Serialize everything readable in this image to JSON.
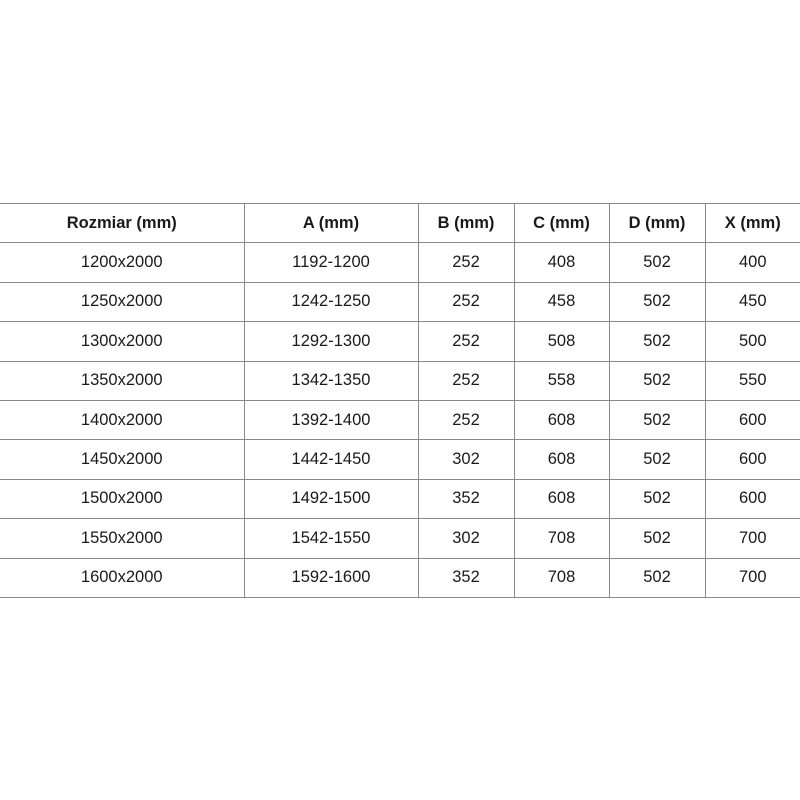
{
  "table": {
    "headers": [
      "Rozmiar (mm)",
      "A (mm)",
      "B (mm)",
      "C (mm)",
      "D (mm)",
      "X (mm)"
    ],
    "rows": [
      [
        "1200x2000",
        "1192-1200",
        "252",
        "408",
        "502",
        "400"
      ],
      [
        "1250x2000",
        "1242-1250",
        "252",
        "458",
        "502",
        "450"
      ],
      [
        "1300x2000",
        "1292-1300",
        "252",
        "508",
        "502",
        "500"
      ],
      [
        "1350x2000",
        "1342-1350",
        "252",
        "558",
        "502",
        "550"
      ],
      [
        "1400x2000",
        "1392-1400",
        "252",
        "608",
        "502",
        "600"
      ],
      [
        "1450x2000",
        "1442-1450",
        "302",
        "608",
        "502",
        "600"
      ],
      [
        "1500x2000",
        "1492-1500",
        "352",
        "608",
        "502",
        "600"
      ],
      [
        "1550x2000",
        "1542-1550",
        "302",
        "708",
        "502",
        "700"
      ],
      [
        "1600x2000",
        "1592-1600",
        "352",
        "708",
        "502",
        "700"
      ]
    ]
  }
}
